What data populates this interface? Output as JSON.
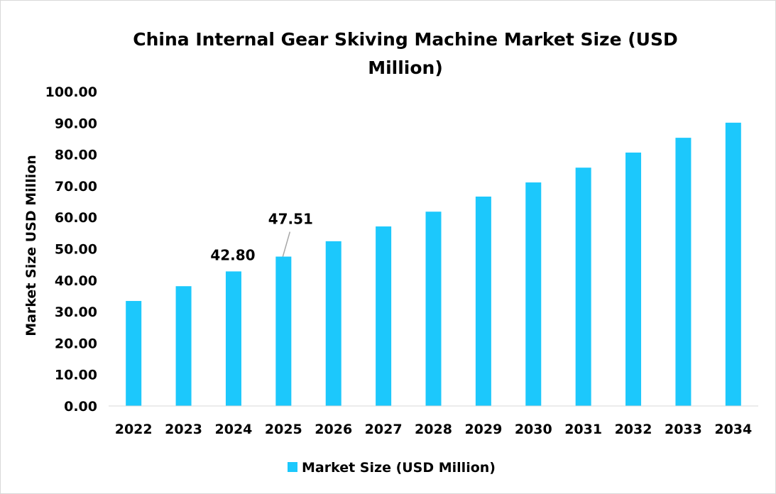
{
  "chart_data": {
    "type": "bar",
    "title_line1": "China Internal Gear Skiving Machine Market Size (USD",
    "title_line2": "Million)",
    "xlabel": "",
    "ylabel": "Market Size USD Million",
    "ylim": [
      0,
      100
    ],
    "yticks": [
      "0.00",
      "10.00",
      "20.00",
      "30.00",
      "40.00",
      "50.00",
      "60.00",
      "70.00",
      "80.00",
      "90.00",
      "100.00"
    ],
    "categories": [
      "2022",
      "2023",
      "2024",
      "2025",
      "2026",
      "2027",
      "2028",
      "2029",
      "2030",
      "2031",
      "2032",
      "2033",
      "2034"
    ],
    "series": [
      {
        "name": "Market Size (USD Million)",
        "color": "#1CC8FC",
        "values": [
          33.4,
          38.1,
          42.8,
          47.51,
          52.4,
          57.1,
          61.8,
          66.6,
          71.1,
          75.8,
          80.6,
          85.3,
          90.1
        ]
      }
    ],
    "data_labels": [
      {
        "category": "2024",
        "text": "42.80"
      },
      {
        "category": "2025",
        "text": "47.51"
      }
    ],
    "grid": false,
    "legend": "bottom"
  }
}
